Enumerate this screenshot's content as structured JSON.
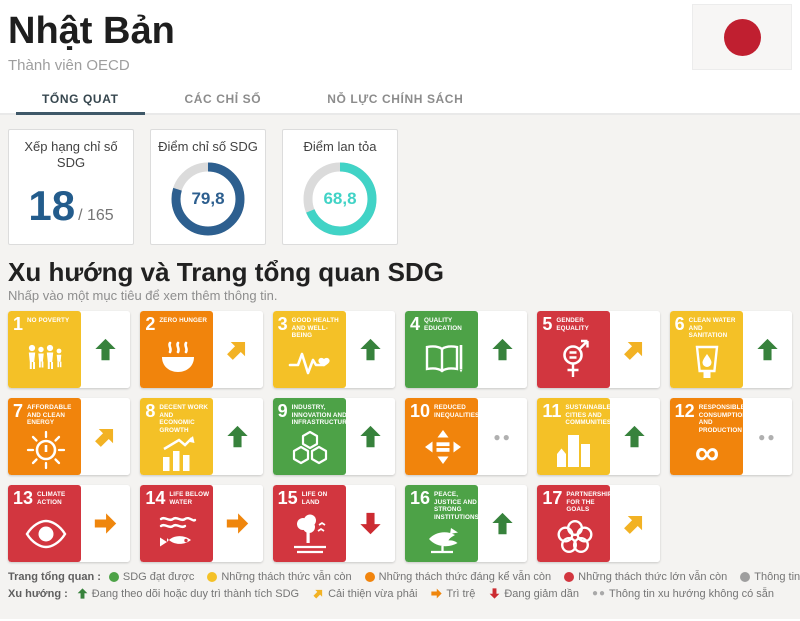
{
  "header": {
    "title": "Nhật Bản",
    "subtitle": "Thành viên OECD"
  },
  "tabs": [
    {
      "label": "TỔNG QUAT",
      "active": true
    },
    {
      "label": "CÁC CHỈ SỐ",
      "active": false
    },
    {
      "label": "NỖ LỰC CHÍNH SÁCH",
      "active": false
    }
  ],
  "cards": {
    "rank": {
      "title": "Xếp hạng chỉ số SDG",
      "value": "18",
      "total": "/ 165"
    },
    "index": {
      "title": "Điểm chỉ số SDG",
      "value": "79,8",
      "percent": 79.8,
      "color": "#2d5f8f"
    },
    "spillover": {
      "title": "Điểm lan tỏa",
      "value": "68,8",
      "percent": 68.8,
      "color": "#41d3c6"
    }
  },
  "section": {
    "title": "Xu hướng và Trang tổng quan SDG",
    "subtitle": "Nhấp vào một mục tiêu để xem thêm thông tin."
  },
  "goals": [
    {
      "num": "1",
      "name": "NO POVERTY",
      "status": "yellow",
      "trend": "up"
    },
    {
      "num": "2",
      "name": "ZERO HUNGER",
      "status": "orange",
      "trend": "upright"
    },
    {
      "num": "3",
      "name": "GOOD HEALTH AND WELL-BEING",
      "status": "yellow",
      "trend": "up"
    },
    {
      "num": "4",
      "name": "QUALITY EDUCATION",
      "status": "green",
      "trend": "up"
    },
    {
      "num": "5",
      "name": "GENDER EQUALITY",
      "status": "red",
      "trend": "upright"
    },
    {
      "num": "6",
      "name": "CLEAN WATER AND SANITATION",
      "status": "yellow",
      "trend": "up"
    },
    {
      "num": "7",
      "name": "AFFORDABLE AND CLEAN ENERGY",
      "status": "orange",
      "trend": "upright"
    },
    {
      "num": "8",
      "name": "DECENT WORK AND ECONOMIC GROWTH",
      "status": "yellow",
      "trend": "up"
    },
    {
      "num": "9",
      "name": "INDUSTRY, INNOVATION AND INFRASTRUCTURE",
      "status": "green",
      "trend": "up"
    },
    {
      "num": "10",
      "name": "REDUCED INEQUALITIES",
      "status": "orange",
      "trend": "dots"
    },
    {
      "num": "11",
      "name": "SUSTAINABLE CITIES AND COMMUNITIES",
      "status": "yellow",
      "trend": "up"
    },
    {
      "num": "12",
      "name": "RESPONSIBLE CONSUMPTION AND PRODUCTION",
      "status": "orange",
      "trend": "dots"
    },
    {
      "num": "13",
      "name": "CLIMATE ACTION",
      "status": "red",
      "trend": "right"
    },
    {
      "num": "14",
      "name": "LIFE BELOW WATER",
      "status": "red",
      "trend": "right"
    },
    {
      "num": "15",
      "name": "LIFE ON LAND",
      "status": "red",
      "trend": "down"
    },
    {
      "num": "16",
      "name": "PEACE, JUSTICE AND STRONG INSTITUTIONS",
      "status": "green",
      "trend": "up"
    },
    {
      "num": "17",
      "name": "PARTNERSHIPS FOR THE GOALS",
      "status": "red",
      "trend": "upright"
    }
  ],
  "status_colors": {
    "green": "#4da247",
    "yellow": "#f4c127",
    "orange": "#f1840c",
    "red": "#d2363f",
    "gray": "#9e9e9e"
  },
  "trend_colors": {
    "up": "#37823c",
    "upright": "#f2b224",
    "right": "#ef860d",
    "down": "#cc2b31",
    "dots": "#a9a9a9"
  },
  "legend_dashboard": {
    "label": "Trang tổng quan :",
    "items": [
      {
        "color": "green",
        "text": "SDG đạt được"
      },
      {
        "color": "yellow",
        "text": "Những thách thức vẫn còn"
      },
      {
        "color": "orange",
        "text": "Những thách thức đáng kể vẫn còn"
      },
      {
        "color": "red",
        "text": "Những thách thức lớn vẫn còn"
      },
      {
        "color": "gray",
        "text": "Thông tin không có sẵn"
      }
    ]
  },
  "legend_trend": {
    "label": "Xu hướng :",
    "items": [
      {
        "trend": "up",
        "text": "Đang theo dõi hoặc duy trì thành tích SDG"
      },
      {
        "trend": "upright",
        "text": "Cải thiện vừa phải"
      },
      {
        "trend": "right",
        "text": "Trì trệ"
      },
      {
        "trend": "down",
        "text": "Đang giảm dần"
      },
      {
        "trend": "dots",
        "text": "Thông tin xu hướng không có sẵn"
      }
    ]
  }
}
